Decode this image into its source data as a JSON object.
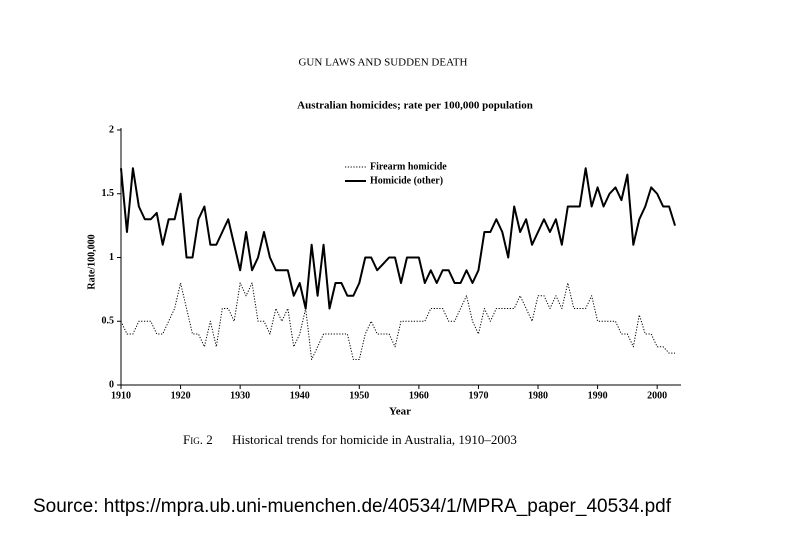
{
  "page": {
    "header": "GUN LAWS AND SUDDEN DEATH",
    "figure_label": "Fig. 2",
    "caption": "Historical trends for homicide in Australia, 1910–2003",
    "source": "Source: https://mpra.ub.uni-muenchen.de/40534/1/MPRA_paper_40534.pdf"
  },
  "chart_data": {
    "type": "line",
    "title": "Australian homicides; rate per 100,000 population",
    "xlabel": "Year",
    "ylabel": "Rate/100,000",
    "xlim": [
      1910,
      2004
    ],
    "xticks": [
      1910,
      1920,
      1930,
      1940,
      1950,
      1960,
      1970,
      1980,
      1990,
      2000
    ],
    "ylim": [
      0,
      2
    ],
    "yticks": [
      0,
      0.5,
      1,
      1.5,
      2
    ],
    "grid": false,
    "x": [
      1910,
      1911,
      1912,
      1913,
      1914,
      1915,
      1916,
      1917,
      1918,
      1919,
      1920,
      1921,
      1922,
      1923,
      1924,
      1925,
      1926,
      1927,
      1928,
      1929,
      1930,
      1931,
      1932,
      1933,
      1934,
      1935,
      1936,
      1937,
      1938,
      1939,
      1940,
      1941,
      1942,
      1943,
      1944,
      1945,
      1946,
      1947,
      1948,
      1949,
      1950,
      1951,
      1952,
      1953,
      1954,
      1955,
      1956,
      1957,
      1958,
      1959,
      1960,
      1961,
      1962,
      1963,
      1964,
      1965,
      1966,
      1967,
      1968,
      1969,
      1970,
      1971,
      1972,
      1973,
      1974,
      1975,
      1976,
      1977,
      1978,
      1979,
      1980,
      1981,
      1982,
      1983,
      1984,
      1985,
      1986,
      1987,
      1988,
      1989,
      1990,
      1991,
      1992,
      1993,
      1994,
      1995,
      1996,
      1997,
      1998,
      1999,
      2000,
      2001,
      2002,
      2003
    ],
    "series": [
      {
        "name": "Firearm homicide",
        "color": "#000000",
        "line_style": "dotted",
        "values": [
          0.5,
          0.4,
          0.4,
          0.5,
          0.5,
          0.5,
          0.4,
          0.4,
          0.5,
          0.6,
          0.8,
          0.6,
          0.4,
          0.4,
          0.3,
          0.5,
          0.3,
          0.6,
          0.6,
          0.5,
          0.8,
          0.7,
          0.8,
          0.5,
          0.5,
          0.4,
          0.6,
          0.5,
          0.6,
          0.3,
          0.4,
          0.6,
          0.2,
          0.3,
          0.4,
          0.4,
          0.4,
          0.4,
          0.4,
          0.2,
          0.2,
          0.4,
          0.5,
          0.4,
          0.4,
          0.4,
          0.3,
          0.5,
          0.5,
          0.5,
          0.5,
          0.5,
          0.6,
          0.6,
          0.6,
          0.5,
          0.5,
          0.6,
          0.7,
          0.5,
          0.4,
          0.6,
          0.5,
          0.6,
          0.6,
          0.6,
          0.6,
          0.7,
          0.6,
          0.5,
          0.7,
          0.7,
          0.6,
          0.7,
          0.6,
          0.8,
          0.6,
          0.6,
          0.6,
          0.7,
          0.5,
          0.5,
          0.5,
          0.5,
          0.4,
          0.4,
          0.3,
          0.55,
          0.4,
          0.4,
          0.3,
          0.3,
          0.25,
          0.25
        ]
      },
      {
        "name": "Homicide (other)",
        "color": "#000000",
        "line_style": "solid",
        "values": [
          1.7,
          1.2,
          1.7,
          1.4,
          1.3,
          1.3,
          1.35,
          1.1,
          1.3,
          1.3,
          1.5,
          1.0,
          1.0,
          1.3,
          1.4,
          1.1,
          1.1,
          1.2,
          1.3,
          1.1,
          0.9,
          1.2,
          0.9,
          1.0,
          1.2,
          1.0,
          0.9,
          0.9,
          0.9,
          0.7,
          0.8,
          0.6,
          1.1,
          0.7,
          1.1,
          0.6,
          0.8,
          0.8,
          0.7,
          0.7,
          0.8,
          1.0,
          1.0,
          0.9,
          0.95,
          1.0,
          1.0,
          0.8,
          1.0,
          1.0,
          1.0,
          0.8,
          0.9,
          0.8,
          0.9,
          0.9,
          0.8,
          0.8,
          0.9,
          0.8,
          0.9,
          1.2,
          1.2,
          1.3,
          1.2,
          1.0,
          1.4,
          1.2,
          1.3,
          1.1,
          1.2,
          1.3,
          1.2,
          1.3,
          1.1,
          1.4,
          1.4,
          1.4,
          1.7,
          1.4,
          1.55,
          1.4,
          1.5,
          1.55,
          1.45,
          1.65,
          1.1,
          1.3,
          1.4,
          1.55,
          1.5,
          1.4,
          1.4,
          1.25
        ]
      }
    ]
  }
}
